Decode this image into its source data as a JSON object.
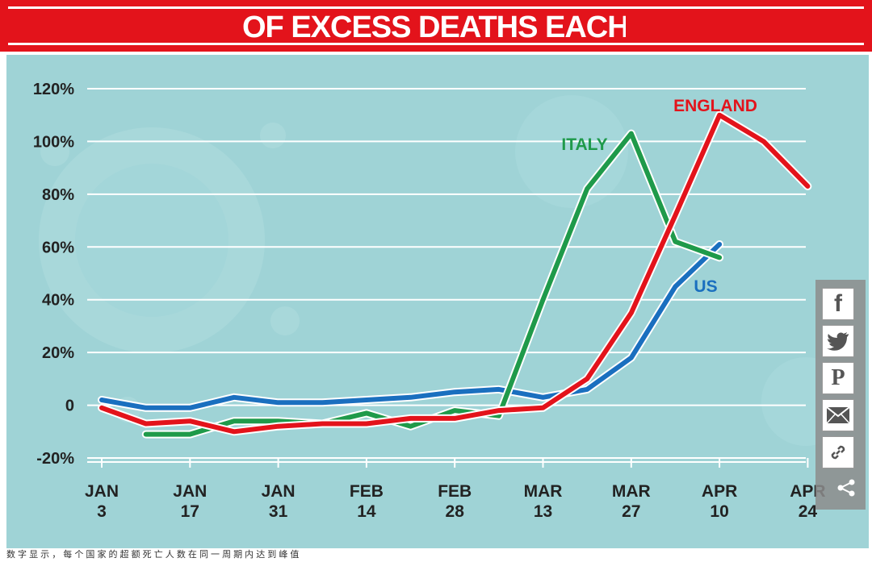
{
  "chart_data": {
    "type": "line",
    "title": "OF EXCESS DEATHS EACH W",
    "x_labels": [
      {
        "top": "JAN",
        "bottom": "3"
      },
      {
        "top": "JAN",
        "bottom": "17"
      },
      {
        "top": "JAN",
        "bottom": "31"
      },
      {
        "top": "FEB",
        "bottom": "14"
      },
      {
        "top": "FEB",
        "bottom": "28"
      },
      {
        "top": "MAR",
        "bottom": "13"
      },
      {
        "top": "MAR",
        "bottom": "27"
      },
      {
        "top": "APR",
        "bottom": "10"
      },
      {
        "top": "APR",
        "bottom": "24"
      }
    ],
    "y_ticks": [
      "-20%",
      "0",
      "20%",
      "40%",
      "60%",
      "80%",
      "100%",
      "120%"
    ],
    "ylim": [
      -20,
      120
    ],
    "series": [
      {
        "name": "ENGLAND",
        "color": "#e3131b",
        "points": [
          [
            0,
            -1
          ],
          [
            0.5,
            -7
          ],
          [
            1,
            -6
          ],
          [
            1.5,
            -10
          ],
          [
            2,
            -8
          ],
          [
            2.5,
            -7
          ],
          [
            3,
            -7
          ],
          [
            3.5,
            -5
          ],
          [
            4,
            -5
          ],
          [
            4.5,
            -2
          ],
          [
            5,
            -1
          ],
          [
            5.5,
            10
          ],
          [
            6,
            35
          ],
          [
            6.5,
            72
          ],
          [
            7,
            110
          ],
          [
            7.5,
            100
          ],
          [
            8,
            83
          ]
        ]
      },
      {
        "name": "ITALY",
        "color": "#1f9a4a",
        "points": [
          [
            0.5,
            -11
          ],
          [
            1,
            -11
          ],
          [
            1.5,
            -6
          ],
          [
            2,
            -6
          ],
          [
            2.5,
            -7
          ],
          [
            3,
            -3
          ],
          [
            3.5,
            -8
          ],
          [
            4,
            -2
          ],
          [
            4.5,
            -4
          ],
          [
            5,
            40
          ],
          [
            5.5,
            82
          ],
          [
            6,
            103
          ],
          [
            6.5,
            62
          ],
          [
            7,
            56
          ]
        ]
      },
      {
        "name": "US",
        "color": "#1a6fbf",
        "points": [
          [
            0,
            2
          ],
          [
            0.5,
            -1
          ],
          [
            1,
            -1
          ],
          [
            1.5,
            3
          ],
          [
            2,
            1
          ],
          [
            2.5,
            1
          ],
          [
            3,
            2
          ],
          [
            3.5,
            3
          ],
          [
            4,
            5
          ],
          [
            4.5,
            6
          ],
          [
            5,
            3
          ],
          [
            5.5,
            6
          ],
          [
            6,
            18
          ],
          [
            6.5,
            45
          ],
          [
            7,
            61
          ]
        ]
      }
    ],
    "annotations": [
      {
        "text": "ENGLAND",
        "color": "#e3131b"
      },
      {
        "text": "ITALY",
        "color": "#1f9a4a"
      },
      {
        "text": "US",
        "color": "#1a6fbf"
      }
    ]
  },
  "share": {
    "facebook": "f",
    "twitter": "twitter-icon",
    "pinterest": "P",
    "email": "email-icon",
    "link": "link-icon",
    "share": "share-icon"
  },
  "footer_text": "数 字 显 示 ， 每 个 国 家 的 超 额 死 亡 人 数 在 同 一 周 期 内 达 到 峰 值"
}
